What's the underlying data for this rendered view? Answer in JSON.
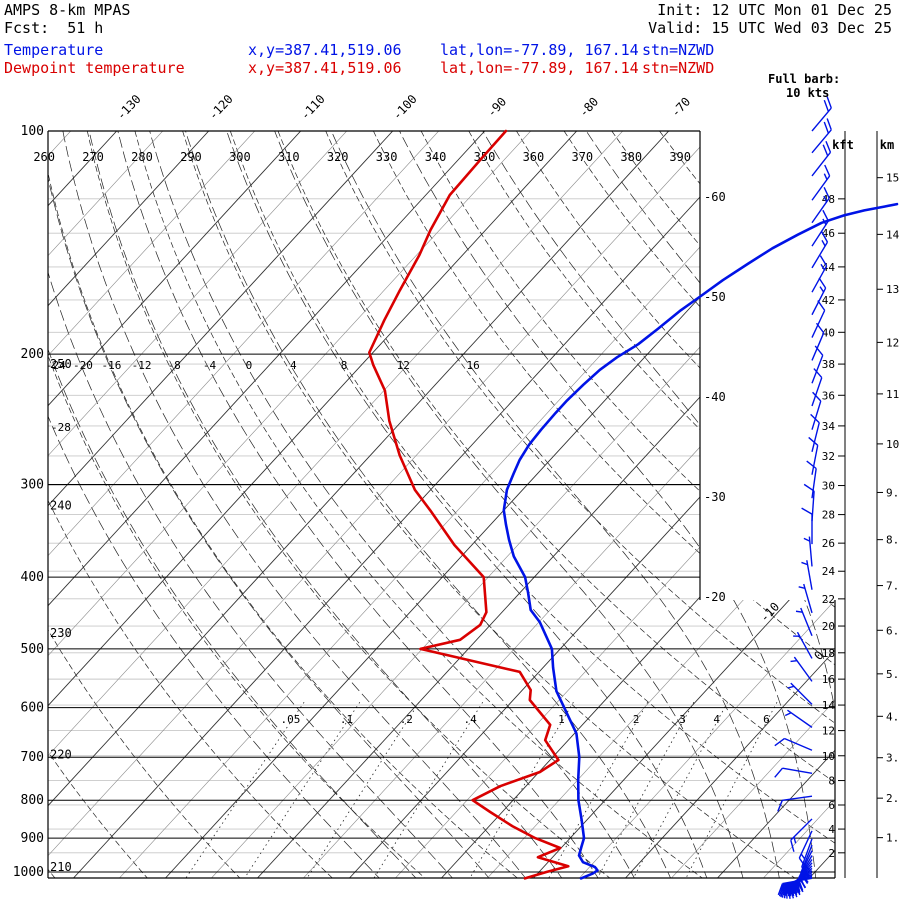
{
  "header": {
    "app_title": "AMPS 8-km MPAS",
    "fcst_line": "Fcst:  51 h",
    "init_line": "Init: 12 UTC Mon 01 Dec 25",
    "valid_line": "Valid: 15 UTC Wed 03 Dec 25"
  },
  "legend": {
    "temperature": {
      "label": "Temperature",
      "xy": "x,y=387.41,519.06",
      "latlon": "lat,lon=-77.89, 167.14",
      "stn": "stn=NZWD",
      "color": "#0013e6"
    },
    "dewpoint": {
      "label": "Dewpoint temperature",
      "xy": "x,y=387.41,519.06",
      "latlon": "lat,lon=-77.89, 167.14",
      "stn": "stn=NZWD",
      "color": "#d90000"
    }
  },
  "barb_legend": {
    "line1": "Full barb:",
    "line2": "10 kts"
  },
  "chart_data": {
    "type": "skewt",
    "station": "NZWD",
    "pressure_axis_hpa": [
      100,
      200,
      300,
      400,
      500,
      600,
      700,
      800,
      900,
      1000
    ],
    "isotherm_labels_c": [
      -130,
      -120,
      -110,
      -100,
      -90,
      -80,
      -70,
      -60,
      -50,
      -40,
      -30,
      -20,
      -10,
      0
    ],
    "isotherm_family_c": {
      "min": -135,
      "max": 25,
      "step": 5
    },
    "dry_adiabat_top_labels_k": [
      260,
      270,
      280,
      290,
      300,
      310,
      320,
      330,
      340,
      350,
      360,
      370,
      380,
      390
    ],
    "dry_adiabat_left_labels_k": [
      250,
      240,
      230,
      220,
      210
    ],
    "dry_adiabat_family_k": {
      "min": 210,
      "max": 400,
      "step": 10
    },
    "moist_adiabat_labels_c": [
      -28,
      -24,
      -20,
      -16,
      -12,
      -8,
      -4,
      0,
      4,
      8,
      12,
      16
    ],
    "moist_adiabat_family_c": {
      "min": -28,
      "max": 28,
      "step": 4
    },
    "mixing_ratio_labels": [
      ".05",
      ".1",
      ".2",
      ".4",
      "1",
      "2",
      "3",
      "4",
      "6"
    ],
    "mixing_ratio_values_gkg": [
      0.05,
      0.1,
      0.2,
      0.4,
      1,
      2,
      3,
      4,
      6
    ],
    "heights": {
      "kft_label": "kft",
      "km_label": "km",
      "kft_values": [
        48,
        46,
        44,
        42,
        40,
        38,
        36,
        34,
        32,
        30,
        28,
        26,
        24,
        22,
        20,
        18,
        16,
        14,
        12,
        10,
        8,
        6,
        4,
        2
      ],
      "km_tick_labels": [
        "15.",
        "14.",
        "13.",
        "12.",
        "11.",
        "10.",
        "9.",
        "8.",
        "7.",
        "6.",
        "5.",
        "4.",
        "3.",
        "2.",
        "1."
      ]
    },
    "temperature_profile_c": [
      [
        1020,
        -4.8
      ],
      [
        1005,
        -4.0
      ],
      [
        995,
        -3.8
      ],
      [
        985,
        -4.4
      ],
      [
        970,
        -6.2
      ],
      [
        950,
        -7.3
      ],
      [
        925,
        -7.9
      ],
      [
        900,
        -8.5
      ],
      [
        850,
        -10.6
      ],
      [
        800,
        -12.9
      ],
      [
        750,
        -15.0
      ],
      [
        700,
        -17.1
      ],
      [
        650,
        -19.8
      ],
      [
        620,
        -22.1
      ],
      [
        570,
        -26.2
      ],
      [
        530,
        -28.9
      ],
      [
        500,
        -30.9
      ],
      [
        460,
        -34.9
      ],
      [
        443,
        -37.1
      ],
      [
        420,
        -39.1
      ],
      [
        400,
        -41.0
      ],
      [
        375,
        -44.3
      ],
      [
        356,
        -46.5
      ],
      [
        340,
        -48.3
      ],
      [
        325,
        -50.0
      ],
      [
        305,
        -51.7
      ],
      [
        290,
        -52.6
      ],
      [
        278,
        -53.3
      ],
      [
        265,
        -53.8
      ],
      [
        253,
        -54.0
      ],
      [
        240,
        -54.1
      ],
      [
        231,
        -54.1
      ],
      [
        220,
        -53.9
      ],
      [
        210,
        -53.6
      ],
      [
        202,
        -53.0
      ],
      [
        194,
        -52.0
      ],
      [
        185,
        -51.4
      ],
      [
        175,
        -50.8
      ],
      [
        167,
        -50.0
      ],
      [
        159,
        -49.2
      ],
      [
        151,
        -48.1
      ],
      [
        144,
        -47.0
      ],
      [
        138,
        -45.6
      ],
      [
        133,
        -44.2
      ],
      [
        130,
        -42.5
      ],
      [
        128,
        -40.8
      ],
      [
        126.5,
        -39.0
      ],
      [
        125.5,
        -37.8
      ]
    ],
    "dewpoint_profile_c": [
      [
        1020,
        -10.9
      ],
      [
        1000,
        -9.2
      ],
      [
        982,
        -7.4
      ],
      [
        955,
        -11.6
      ],
      [
        928,
        -10.1
      ],
      [
        900,
        -13.8
      ],
      [
        867,
        -17.5
      ],
      [
        830,
        -21.3
      ],
      [
        800,
        -24.4
      ],
      [
        766,
        -22.8
      ],
      [
        733,
        -19.9
      ],
      [
        706,
        -19.1
      ],
      [
        664,
        -22.5
      ],
      [
        633,
        -23.5
      ],
      [
        586,
        -28.2
      ],
      [
        568,
        -29.1
      ],
      [
        537,
        -32.1
      ],
      [
        500,
        -45.2
      ],
      [
        486,
        -41.8
      ],
      [
        464,
        -41.1
      ],
      [
        446,
        -41.7
      ],
      [
        400,
        -45.5
      ],
      [
        362,
        -51.9
      ],
      [
        325,
        -58.0
      ],
      [
        305,
        -61.7
      ],
      [
        274,
        -66.8
      ],
      [
        246,
        -71.4
      ],
      [
        224,
        -74.9
      ],
      [
        207,
        -78.7
      ],
      [
        199,
        -80.4
      ],
      [
        180,
        -82.0
      ],
      [
        164,
        -83.3
      ],
      [
        147,
        -84.7
      ],
      [
        136,
        -86.0
      ],
      [
        122,
        -87.4
      ],
      [
        109,
        -87.6
      ],
      [
        100,
        -87.7
      ]
    ],
    "winds_kts": [
      [
        100,
        40,
        20
      ],
      [
        107,
        40,
        20
      ],
      [
        115,
        38,
        20
      ],
      [
        124,
        36,
        15
      ],
      [
        133,
        35,
        15
      ],
      [
        143,
        33,
        15
      ],
      [
        153,
        31,
        15
      ],
      [
        165,
        29,
        15
      ],
      [
        177,
        27,
        15
      ],
      [
        190,
        25,
        10
      ],
      [
        204,
        23,
        10
      ],
      [
        219,
        21,
        10
      ],
      [
        235,
        19,
        10
      ],
      [
        253,
        17,
        10
      ],
      [
        271,
        14,
        10
      ],
      [
        291,
        11,
        10
      ],
      [
        313,
        8,
        10
      ],
      [
        336,
        4,
        10
      ],
      [
        361,
        0,
        10
      ],
      [
        387,
        355,
        5
      ],
      [
        416,
        350,
        5
      ],
      [
        447,
        344,
        5
      ],
      [
        480,
        338,
        5
      ],
      [
        515,
        331,
        5
      ],
      [
        553,
        324,
        5
      ],
      [
        594,
        315,
        5
      ],
      [
        638,
        305,
        5
      ],
      [
        685,
        293,
        10
      ],
      [
        736,
        280,
        10
      ],
      [
        790,
        262,
        10
      ],
      [
        848,
        225,
        15
      ],
      [
        880,
        205,
        15
      ],
      [
        902,
        200,
        20
      ],
      [
        920,
        202,
        20
      ],
      [
        936,
        206,
        25
      ],
      [
        950,
        210,
        25
      ],
      [
        962,
        215,
        30
      ],
      [
        972,
        220,
        30
      ],
      [
        981,
        226,
        30
      ],
      [
        989,
        232,
        35
      ],
      [
        996,
        238,
        35
      ],
      [
        1002,
        243,
        35
      ],
      [
        1008,
        248,
        40
      ],
      [
        1013,
        252,
        40
      ],
      [
        1017,
        256,
        40
      ],
      [
        1020,
        260,
        45
      ]
    ],
    "colors": {
      "temperature": "#0013e6",
      "dewpoint": "#d90000",
      "wind_barbs": "#0013e6",
      "height_lines": "#c8c8c8",
      "grid": "#000000"
    }
  }
}
